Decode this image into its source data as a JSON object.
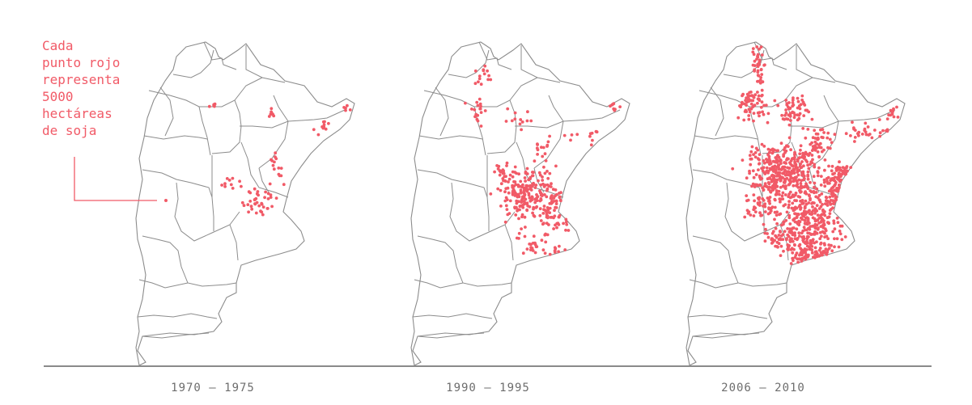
{
  "legend": {
    "text": "Cada\npunto rojo\nrepresenta\n5000\nhectáreas\nde soja",
    "unit_hectares_per_dot": 5000
  },
  "panels": [
    {
      "label": "1970 – 1975",
      "dot_level": 0.08
    },
    {
      "label": "1990 – 1995",
      "dot_level": 0.45
    },
    {
      "label": "2006 – 2010",
      "dot_level": 1.0
    }
  ],
  "colors": {
    "dot": "#f15a67",
    "border": "#8c8c8c",
    "baseline": "#8a8a8a",
    "legend_text": "#f15a67",
    "caption_text": "#6d6d6d"
  }
}
